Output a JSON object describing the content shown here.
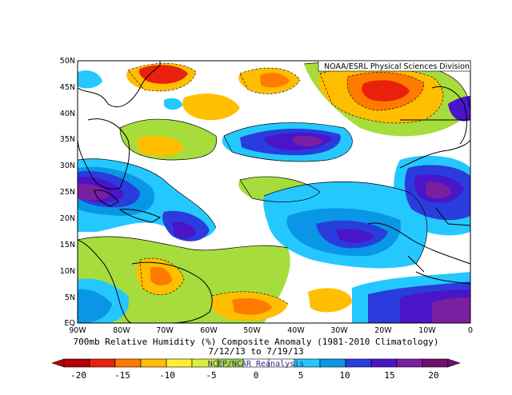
{
  "map": {
    "credit": "NOAA/ESRL Physical Sciences Division",
    "lat_labels": [
      "50N",
      "45N",
      "40N",
      "35N",
      "30N",
      "25N",
      "20N",
      "15N",
      "10N",
      "5N",
      "EQ"
    ],
    "lon_labels": [
      "90W",
      "80W",
      "70W",
      "60W",
      "50W",
      "40W",
      "30W",
      "20W",
      "10W",
      "0"
    ],
    "caption_line1": "700mb Relative Humidity (%) Composite Anomaly (1981-2010 Climatology)",
    "caption_line2": "7/12/13 to 7/19/13",
    "reanalysis_label": "NCEP/NCAR Reanalysis",
    "domain": {
      "lon": [
        -90,
        0
      ],
      "lat": [
        0,
        50
      ]
    }
  },
  "colorbar": {
    "labels": [
      "-20",
      "-15",
      "-10",
      "-5",
      "0",
      "5",
      "10",
      "15",
      "20"
    ],
    "colors": [
      "#b40000",
      "#e8200c",
      "#ff7a00",
      "#ffbe00",
      "#ffef33",
      "#d8f03a",
      "#a6dc3c",
      "#ffffff",
      "#ffffff",
      "#24c8ff",
      "#0a96e6",
      "#2a3cdc",
      "#4a14c8",
      "#7a1fa0",
      "#6e0f6e"
    ]
  },
  "legend_colors": {
    "strong_dry": "#b40000",
    "dry": "#ffbe00",
    "neutral": "#ffffff",
    "moist": "#0a96e6",
    "strong_moist": "#6e0f6e"
  }
}
